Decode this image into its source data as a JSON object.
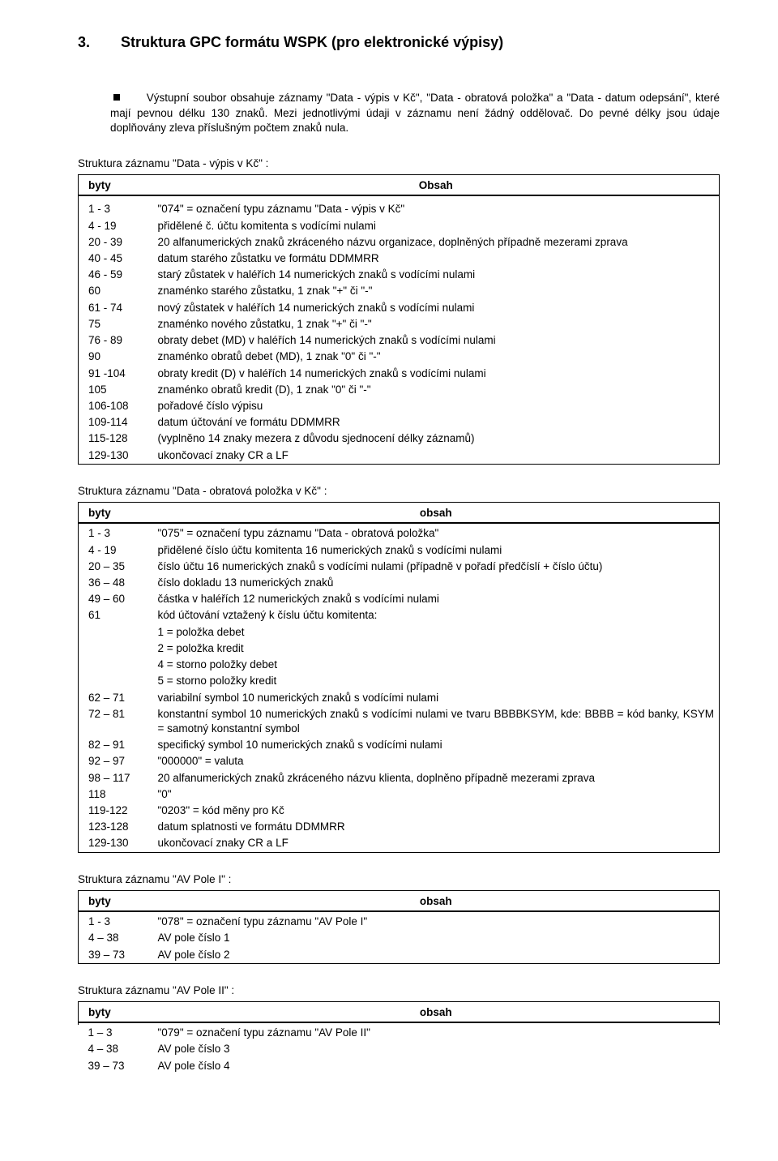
{
  "heading_number": "3.",
  "heading_text": "Struktura GPC formátu WSPK (pro elektronické výpisy)",
  "intro": "Výstupní soubor obsahuje záznamy \"Data - výpis v Kč\",  \"Data - obratová položka\" a \"Data - datum odepsání\", které mají pevnou délku 130 znaků. Mezi jednotlivými údaji v záznamu není žádný oddělovač. Do pevné délky jsou údaje doplňovány zleva příslušným počtem znaků nula.",
  "section1_title": "Struktura záznamu \"Data - výpis v Kč\" :",
  "section2_title": "Struktura  záznamu \"Data - obratová položka v Kč\" :",
  "section3_title": "Struktura  záznamu \"AV Pole I\" :",
  "section4_title": "Struktura  záznamu \"AV Pole II\" :",
  "col_byty": "byty",
  "col_obsah_caps": "Obsah",
  "col_obsah": "obsah",
  "s1_rows": [
    {
      "b": "1 - 3",
      "o": "\"074\" = označení typu záznamu \"Data - výpis v Kč\""
    },
    {
      "b": "4 - 19",
      "o": "přidělené č. účtu komitenta s vodícími nulami"
    },
    {
      "b": "20 - 39",
      "o": "20 alfanumerických znaků zkráceného názvu organizace, doplněných případně mezerami zprava"
    },
    {
      "b": "40 - 45",
      "o": "datum starého zůstatku ve formátu DDMMRR"
    },
    {
      "b": "46 - 59",
      "o": "starý zůstatek v haléřích 14 numerických znaků s vodícími  nulami"
    },
    {
      "b": "60",
      "o": "znaménko starého zůstatku, 1 znak \"+\" či \"-\""
    },
    {
      "b": "61 - 74",
      "o": "nový zůstatek v haléřích 14 numerických znaků s vodícími  nulami"
    },
    {
      "b": "75",
      "o": "znaménko nového zůstatku, 1 znak \"+\" či \"-\""
    },
    {
      "b": "76 - 89",
      "o": "obraty debet (MD) v haléřích 14 numerických znaků s vodícími nulami"
    },
    {
      "b": "90",
      "o": "znaménko obratů debet (MD), 1 znak \"0\" či \"-\""
    },
    {
      "b": "91 -104",
      "o": "obraty kredit (D) v haléřích 14 numerických znaků s vodícími nulami"
    },
    {
      "b": "105",
      "o": "znaménko obratů kredit (D), 1 znak \"0\" či \"-\""
    },
    {
      "b": "106-108",
      "o": "pořadové číslo výpisu"
    },
    {
      "b": "109-114",
      "o": "datum účtování ve formátu DDMMRR"
    },
    {
      "b": "115-128",
      "o": "(vyplněno 14 znaky mezera z důvodu sjednocení délky záznamů)"
    },
    {
      "b": "129-130",
      "o": "ukončovací znaky CR a LF"
    }
  ],
  "s2_rows": [
    {
      "b": "1 - 3",
      "o": "\"075\" = označení typu záznamu \"Data - obratová položka\""
    },
    {
      "b": "4 - 19",
      "o": "přidělené číslo účtu komitenta 16 numerických znaků s vodícími nulami"
    },
    {
      "b": "20 – 35",
      "o": "číslo účtu 16 numerických znaků s vodícími nulami (případně v pořadí předčíslí + číslo účtu)"
    },
    {
      "b": "36 – 48",
      "o": "číslo dokladu 13 numerických znaků"
    },
    {
      "b": "49 – 60",
      "o": "částka v haléřích 12 numerických znaků s vodícími nulami"
    },
    {
      "b": "61",
      "o": "kód účtování vztažený k číslu účtu komitenta:"
    },
    {
      "b": "",
      "o": "1 = položka debet"
    },
    {
      "b": "",
      "o": "2 = položka kredit"
    },
    {
      "b": "",
      "o": "4 = storno položky debet"
    },
    {
      "b": "",
      "o": "5 = storno položky kredit"
    },
    {
      "b": "62 – 71",
      "o": "variabilní symbol 10 numerických znaků s vodícími nulami"
    },
    {
      "b": "72 – 81",
      "o": "konstantní symbol 10 numerických znaků s vodícími nulami ve tvaru BBBBKSYM, kde: BBBB  = kód banky, KSYM = samotný konstantní symbol"
    },
    {
      "b": "82 – 91",
      "o": "specifický symbol 10 numerických znaků s vodícími nulami"
    },
    {
      "b": "92 – 97",
      "o": "\"000000\" = valuta"
    },
    {
      "b": "98 – 117",
      "o": "20 alfanumerických znaků zkráceného názvu klienta, doplněno případně mezerami zprava"
    },
    {
      "b": "118",
      "o": "\"0\""
    },
    {
      "b": "119-122",
      "o": "\"0203\" = kód měny pro Kč"
    },
    {
      "b": "123-128",
      "o": "datum splatnosti ve formátu DDMMRR"
    },
    {
      "b": "129-130",
      "o": "ukončovací znaky CR a LF"
    }
  ],
  "s3_rows": [
    {
      "b": "1 - 3",
      "o": "\"078\" = označení typu záznamu \"AV Pole I\""
    },
    {
      "b": "4 – 38",
      "o": "AV pole číslo 1"
    },
    {
      "b": "39 – 73",
      "o": "AV pole číslo 2"
    }
  ],
  "s4_rows": [
    {
      "b": "1 – 3",
      "o": "\"079\" = označení typu záznamu \"AV Pole II\""
    },
    {
      "b": "4 – 38",
      "o": "AV pole číslo 3"
    },
    {
      "b": "39 – 73",
      "o": "AV pole číslo 4"
    }
  ]
}
